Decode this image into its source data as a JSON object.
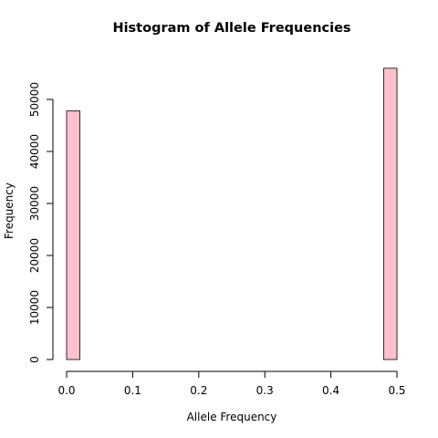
{
  "chart_data": {
    "type": "bar",
    "title": "Histogram of Allele Frequencies",
    "xlabel": "Allele Frequency",
    "ylabel": "Frequency",
    "bar_color": "#ffc0cb",
    "bar_border_color": "#000000",
    "bin_width": 0.02,
    "bins": [
      {
        "x0": 0.0,
        "x1": 0.02,
        "count": 47800
      },
      {
        "x0": 0.02,
        "x1": 0.04,
        "count": 0
      },
      {
        "x0": 0.04,
        "x1": 0.06,
        "count": 0
      },
      {
        "x0": 0.06,
        "x1": 0.08,
        "count": 0
      },
      {
        "x0": 0.08,
        "x1": 0.1,
        "count": 0
      },
      {
        "x0": 0.1,
        "x1": 0.12,
        "count": 0
      },
      {
        "x0": 0.12,
        "x1": 0.14,
        "count": 0
      },
      {
        "x0": 0.14,
        "x1": 0.16,
        "count": 0
      },
      {
        "x0": 0.16,
        "x1": 0.18,
        "count": 0
      },
      {
        "x0": 0.18,
        "x1": 0.2,
        "count": 0
      },
      {
        "x0": 0.2,
        "x1": 0.22,
        "count": 0
      },
      {
        "x0": 0.22,
        "x1": 0.24,
        "count": 0
      },
      {
        "x0": 0.24,
        "x1": 0.26,
        "count": 0
      },
      {
        "x0": 0.26,
        "x1": 0.28,
        "count": 0
      },
      {
        "x0": 0.28,
        "x1": 0.3,
        "count": 0
      },
      {
        "x0": 0.3,
        "x1": 0.32,
        "count": 0
      },
      {
        "x0": 0.32,
        "x1": 0.34,
        "count": 0
      },
      {
        "x0": 0.34,
        "x1": 0.36,
        "count": 0
      },
      {
        "x0": 0.36,
        "x1": 0.38,
        "count": 0
      },
      {
        "x0": 0.38,
        "x1": 0.4,
        "count": 0
      },
      {
        "x0": 0.4,
        "x1": 0.42,
        "count": 0
      },
      {
        "x0": 0.42,
        "x1": 0.44,
        "count": 0
      },
      {
        "x0": 0.44,
        "x1": 0.46,
        "count": 0
      },
      {
        "x0": 0.46,
        "x1": 0.48,
        "count": 0
      },
      {
        "x0": 0.48,
        "x1": 0.5,
        "count": 56000
      }
    ],
    "xlim": [
      0,
      0.5
    ],
    "ylim": [
      0,
      57000
    ],
    "x_ticks": [
      {
        "value": 0.0,
        "label": "0.0"
      },
      {
        "value": 0.1,
        "label": "0.1"
      },
      {
        "value": 0.2,
        "label": "0.2"
      },
      {
        "value": 0.3,
        "label": "0.3"
      },
      {
        "value": 0.4,
        "label": "0.4"
      },
      {
        "value": 0.5,
        "label": "0.5"
      }
    ],
    "y_ticks": [
      {
        "value": 0,
        "label": "0"
      },
      {
        "value": 10000,
        "label": "10000"
      },
      {
        "value": 20000,
        "label": "20000"
      },
      {
        "value": 30000,
        "label": "30000"
      },
      {
        "value": 40000,
        "label": "40000"
      },
      {
        "value": 50000,
        "label": "50000"
      }
    ],
    "grid": false
  }
}
